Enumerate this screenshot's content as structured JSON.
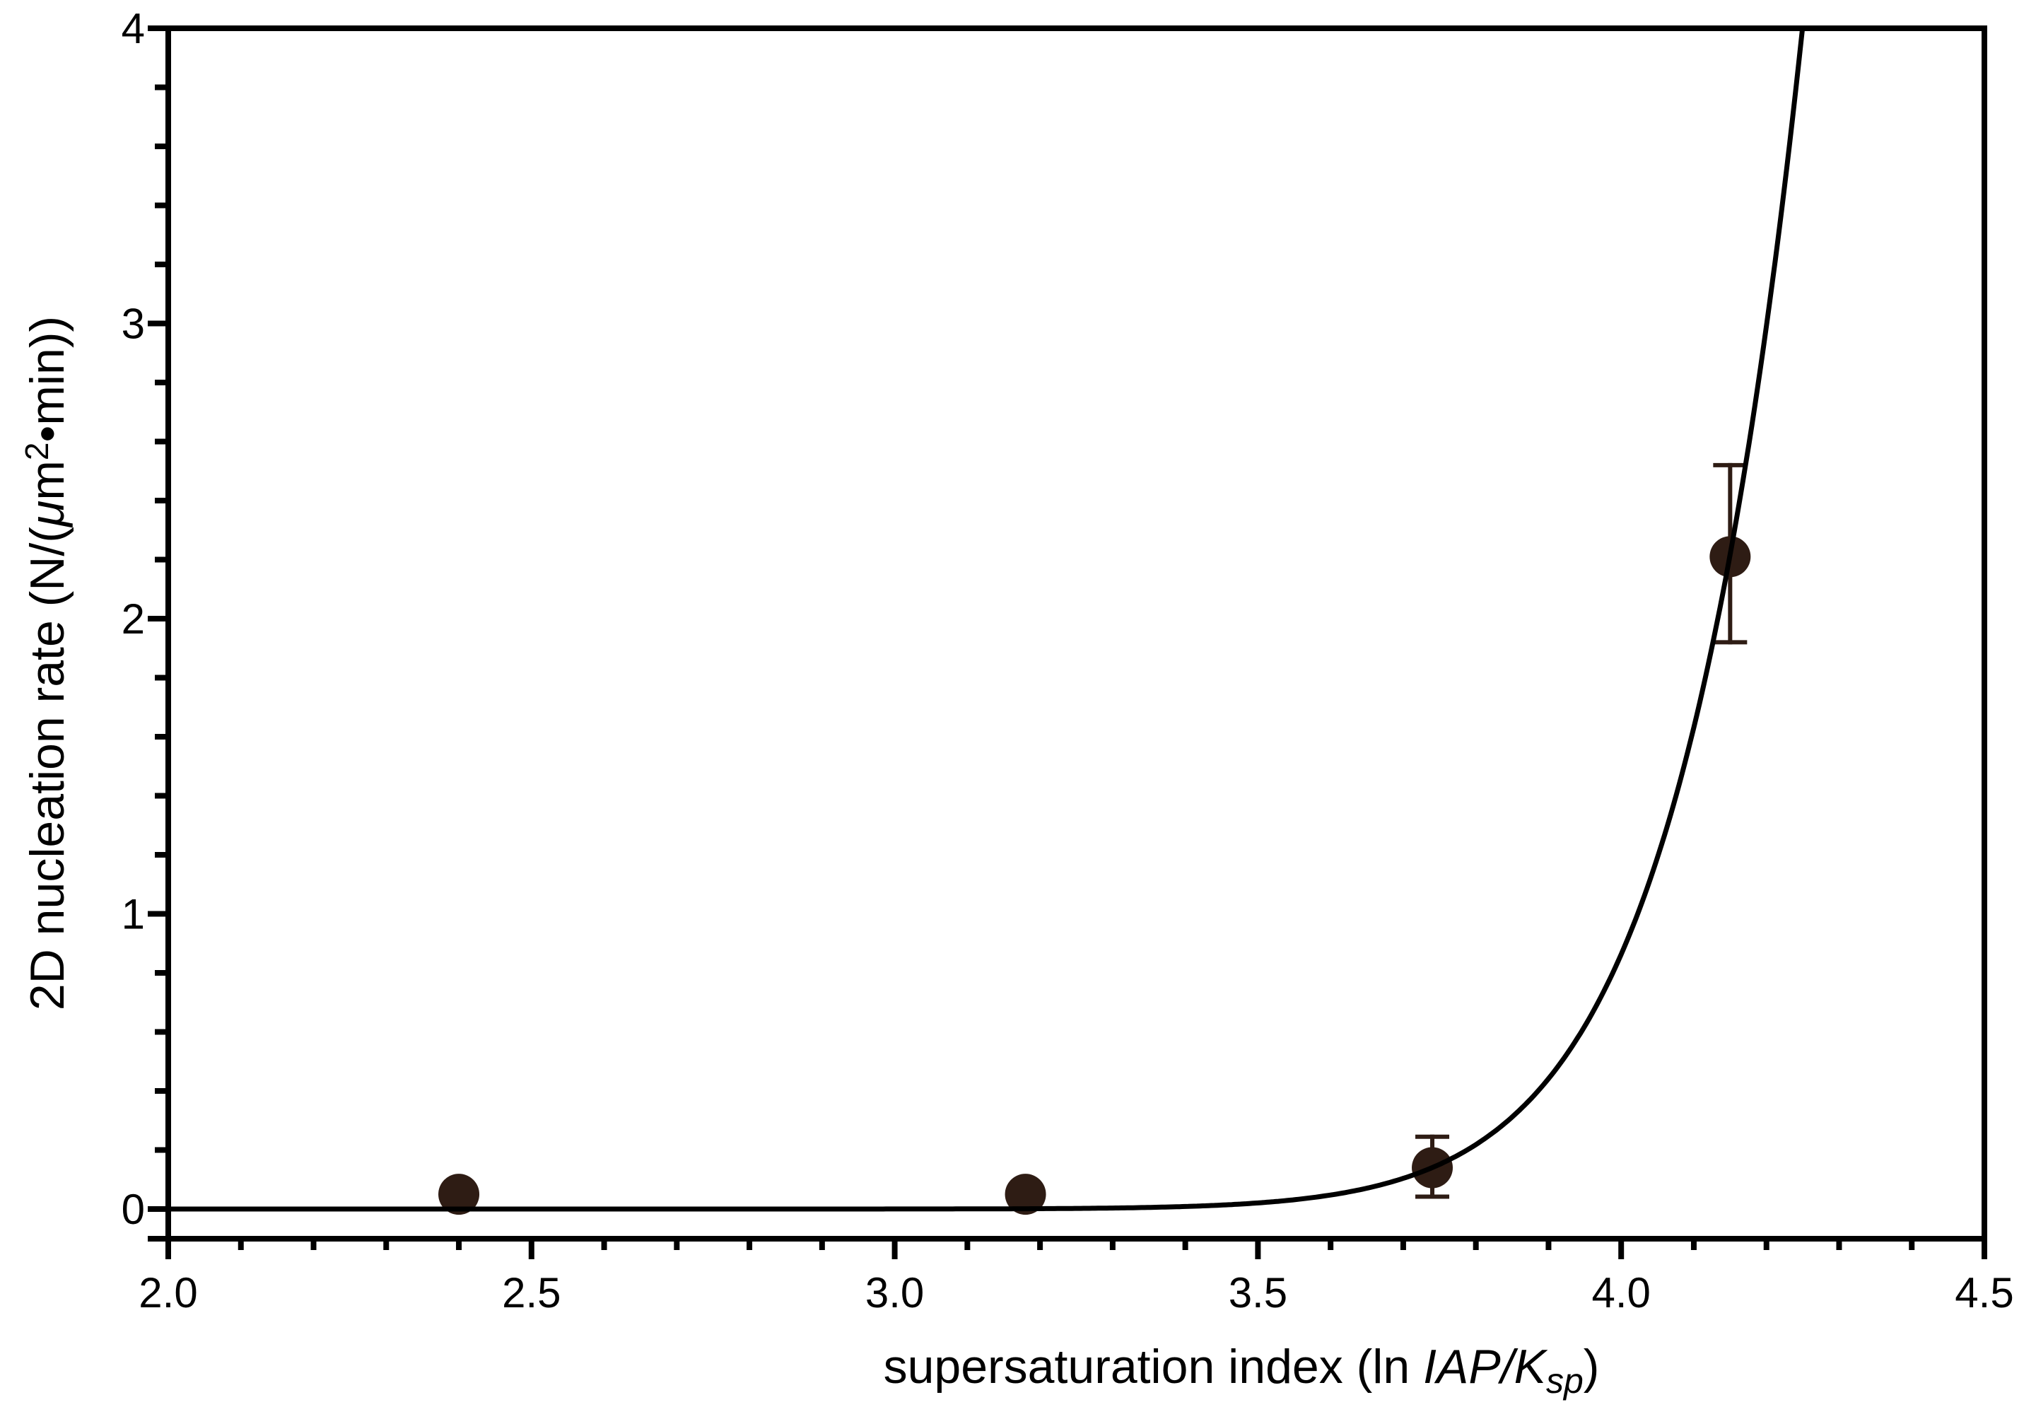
{
  "style": {
    "background": "#ffffff",
    "ink_color": "#000000",
    "marker_color": "#2e1c14",
    "errorbar_color": "#2e1c14",
    "curve_color": "#000000"
  },
  "chart_data": {
    "type": "scatter",
    "title": "",
    "xlabel": "supersaturation index (ln IAP/Ksp)",
    "ylabel": "2D nucleation rate (N/(μm²•min))",
    "xlabel_parts": [
      {
        "t": "supersaturation index (ln ",
        "s": "n"
      },
      {
        "t": "IAP/K",
        "s": "i"
      },
      {
        "t": "sp",
        "s": "isub"
      },
      {
        "t": ")",
        "s": "n"
      }
    ],
    "ylabel_parts": [
      {
        "t": "2D nucleation rate (N/(",
        "s": "n"
      },
      {
        "t": "μ",
        "s": "i"
      },
      {
        "t": "m",
        "s": "n"
      },
      {
        "t": "2",
        "s": "sup"
      },
      {
        "t": "•",
        "s": "n"
      },
      {
        "t": "min))",
        "s": "n"
      }
    ],
    "x_axis": {
      "min": 2.0,
      "max": 4.5,
      "major_step": 0.5,
      "minor_step": 0.1,
      "tick_labels": [
        "2.0",
        "2.5",
        "3.0",
        "3.5",
        "4.0",
        "4.5"
      ]
    },
    "y_axis": {
      "min": 0,
      "max": 4,
      "major_step": 1,
      "minor_step": 0.2,
      "tick_labels": [
        "0",
        "1",
        "2",
        "3",
        "4"
      ]
    },
    "points": [
      {
        "x": 2.4,
        "y": 0.05
      },
      {
        "x": 3.18,
        "y": 0.05
      },
      {
        "x": 3.74,
        "y": 0.14,
        "err_plus": 0.105,
        "err_minus": 0.098
      },
      {
        "x": 4.15,
        "y": 2.21,
        "err_plus": 0.31,
        "err_minus": 0.29
      }
    ],
    "fit_curve": {
      "model": "J(x) = A*exp(-B/x)",
      "A": 189000000000.0,
      "B": 104.45,
      "x_start": 2.0
    },
    "grid": false,
    "legend": false
  }
}
